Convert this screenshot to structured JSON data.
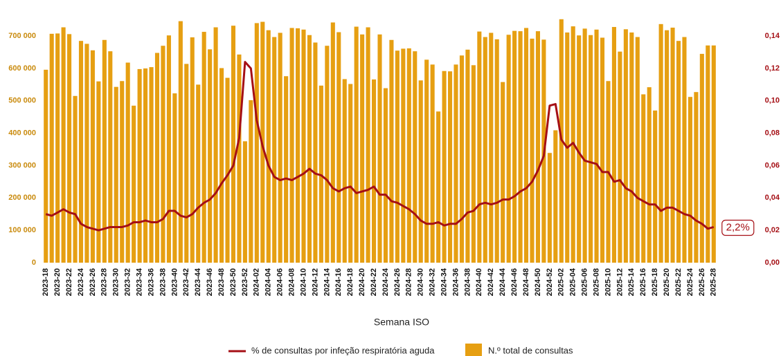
{
  "chart_data": {
    "type": "bar",
    "x_label": "Semana ISO",
    "categories": [
      "2023-18",
      null,
      "2023-20",
      null,
      "2023-22",
      null,
      "2023-24",
      null,
      "2023-26",
      null,
      "2023-28",
      null,
      "2023-30",
      null,
      "2023-32",
      null,
      "2023-34",
      null,
      "2023-36",
      null,
      "2023-38",
      null,
      "2023-40",
      null,
      "2023-42",
      null,
      "2023-44",
      null,
      "2023-46",
      null,
      "2023-48",
      null,
      "2023-50",
      null,
      "2023-52",
      null,
      "2024-02",
      null,
      "2024-04",
      null,
      "2024-06",
      null,
      "2024-08",
      null,
      "2024-10",
      null,
      "2024-12",
      null,
      "2024-14",
      null,
      "2024-16",
      null,
      "2024-18",
      null,
      "2024-20",
      null,
      "2024-22",
      null,
      "2024-24",
      null,
      "2024-26",
      null,
      "2024-28",
      null,
      "2024-30",
      null,
      "2024-32",
      null,
      "2024-34",
      null,
      "2024-36",
      null,
      "2024-38",
      null,
      "2024-40",
      null,
      "2024-42",
      null,
      "2024-44",
      null,
      "2024-46",
      null,
      "2024-48",
      null,
      "2024-50",
      null,
      "2024-52",
      null,
      "2025-02",
      null,
      "2025-04",
      null,
      "2025-06",
      null,
      "2025-08",
      null,
      "2025-10",
      null,
      "2025-12",
      null,
      "2025-14",
      null,
      "2025-16",
      null,
      "2025-18",
      null,
      "2025-20",
      null,
      "2025-22",
      null,
      "2025-24",
      null,
      "2025-26",
      null,
      "2025-28"
    ],
    "series": [
      {
        "name": "% de consultas por infeção respiratória aguda",
        "type": "line",
        "axis": "y2",
        "color": "#a50f15",
        "values": [
          0.03,
          0.029,
          0.031,
          0.033,
          0.031,
          0.03,
          0.024,
          0.022,
          0.021,
          0.02,
          0.021,
          0.022,
          0.022,
          0.022,
          0.023,
          0.025,
          0.025,
          0.026,
          0.025,
          0.025,
          0.027,
          0.032,
          0.032,
          0.029,
          0.028,
          0.03,
          0.034,
          0.037,
          0.039,
          0.043,
          0.049,
          0.054,
          0.06,
          0.077,
          0.124,
          0.12,
          0.088,
          0.072,
          0.06,
          0.053,
          0.051,
          0.052,
          0.051,
          0.053,
          0.055,
          0.058,
          0.055,
          0.054,
          0.051,
          0.046,
          0.044,
          0.046,
          0.047,
          0.043,
          0.044,
          0.045,
          0.047,
          0.042,
          0.042,
          0.038,
          0.037,
          0.035,
          0.033,
          0.03,
          0.026,
          0.024,
          0.024,
          0.025,
          0.023,
          0.024,
          0.024,
          0.027,
          0.031,
          0.032,
          0.036,
          0.037,
          0.036,
          0.037,
          0.039,
          0.039,
          0.041,
          0.044,
          0.046,
          0.05,
          0.057,
          0.066,
          0.097,
          0.098,
          0.076,
          0.071,
          0.074,
          0.068,
          0.063,
          0.062,
          0.061,
          0.056,
          0.056,
          0.05,
          0.051,
          0.046,
          0.044,
          0.04,
          0.038,
          0.036,
          0.036,
          0.032,
          0.034,
          0.034,
          0.032,
          0.03,
          0.029,
          0.026,
          0.024,
          0.021,
          0.022
        ],
        "value_labels": [
          null,
          null,
          null,
          null,
          null,
          null,
          null,
          null,
          null,
          null,
          null,
          null,
          null,
          null,
          null,
          null,
          null,
          null,
          null,
          null,
          null,
          null,
          null,
          null,
          null,
          null,
          null,
          null,
          null,
          null,
          null,
          null,
          null,
          null,
          null,
          null,
          null,
          null,
          null,
          null,
          null,
          null,
          null,
          null,
          null,
          null,
          null,
          null,
          null,
          null,
          null,
          null,
          null,
          null,
          null,
          null,
          null,
          null,
          null,
          null,
          null,
          null,
          null,
          null,
          null,
          null,
          null,
          null,
          null,
          null,
          null,
          null,
          null,
          null,
          null,
          null,
          null,
          null,
          null,
          null,
          null,
          null,
          null,
          null,
          null,
          null,
          null,
          null,
          null,
          null,
          null,
          null,
          null,
          null,
          null,
          null,
          null,
          null,
          null,
          null,
          null,
          null,
          null,
          null,
          null,
          null,
          null,
          null,
          null,
          null,
          null,
          null,
          null,
          null,
          "2,2%"
        ]
      },
      {
        "name": "N.º total de consultas",
        "type": "bar",
        "color": "#e69f12",
        "values": [
          596000,
          707000,
          708000,
          727000,
          706000,
          515000,
          685000,
          676000,
          656000,
          560000,
          688000,
          653000,
          543000,
          561000,
          618000,
          485000,
          598000,
          600000,
          604000,
          648000,
          670000,
          702000,
          523000,
          746000,
          614000,
          696000,
          550000,
          713000,
          659000,
          727000,
          601000,
          571000,
          732000,
          643000,
          375000,
          502000,
          740000,
          744000,
          718000,
          697000,
          710000,
          576000,
          725000,
          724000,
          720000,
          703000,
          680000,
          547000,
          670000,
          742000,
          712000,
          567000,
          552000,
          729000,
          705000,
          727000,
          566000,
          705000,
          539000,
          688000,
          655000,
          661000,
          662000,
          653000,
          563000,
          627000,
          612000,
          467000,
          592000,
          591000,
          612000,
          640000,
          658000,
          610000,
          714000,
          697000,
          710000,
          690000,
          558000,
          704000,
          716000,
          715000,
          725000,
          692000,
          715000,
          689000,
          339000,
          409000,
          752000,
          711000,
          730000,
          702000,
          723000,
          703000,
          720000,
          695000,
          561000,
          728000,
          652000,
          721000,
          711000,
          697000,
          520000,
          542000,
          470000,
          737000,
          718000,
          726000,
          685000,
          697000,
          512000,
          527000,
          645000,
          671000,
          671000
        ]
      }
    ],
    "ylim": [
      0,
      790000
    ],
    "yticks": [
      0,
      {
        "value": 100000,
        "label": "100 000"
      },
      {
        "value": 200000,
        "label": "200 000"
      },
      {
        "value": 300000,
        "label": "300 000"
      },
      {
        "value": 400000,
        "label": "400 000"
      },
      {
        "value": 500000,
        "label": "500 000"
      },
      {
        "value": 600000,
        "label": "600 000"
      },
      {
        "value": 700000,
        "label": "700 000"
      }
    ],
    "y2lim": [
      0,
      0.158
    ],
    "y2ticks": [
      {
        "value": 0,
        "label": "0,00"
      },
      {
        "value": 0.02,
        "label": "0,02"
      },
      {
        "value": 0.04,
        "label": "0,04"
      },
      {
        "value": 0.06,
        "label": "0,06"
      },
      {
        "value": 0.08,
        "label": "0,08"
      },
      {
        "value": 0.1,
        "label": "0,10"
      },
      {
        "value": 0.12,
        "label": "0,12"
      },
      {
        "value": 0.14,
        "label": "0,14"
      }
    ],
    "grid": false
  }
}
